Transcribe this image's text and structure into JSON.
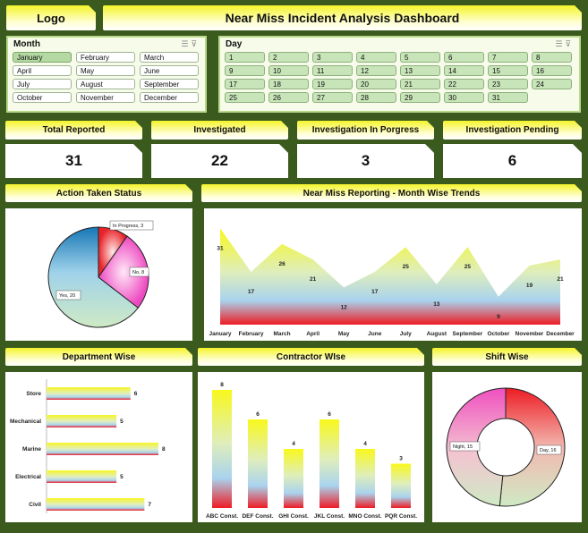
{
  "header": {
    "logo": "Logo",
    "title": "Near Miss Incident Analysis Dashboard"
  },
  "month_slicer": {
    "title": "Month",
    "items": [
      "January",
      "February",
      "March",
      "April",
      "May",
      "June",
      "July",
      "August",
      "September",
      "October",
      "November",
      "December"
    ],
    "selected": "January"
  },
  "day_slicer": {
    "title": "Day",
    "items": [
      "1",
      "2",
      "3",
      "4",
      "5",
      "6",
      "7",
      "8",
      "9",
      "10",
      "11",
      "12",
      "13",
      "14",
      "15",
      "16",
      "17",
      "18",
      "19",
      "20",
      "21",
      "22",
      "23",
      "24",
      "25",
      "26",
      "27",
      "28",
      "29",
      "30",
      "31"
    ]
  },
  "kpis": [
    {
      "label": "Total Reported",
      "value": "31"
    },
    {
      "label": "Investigated",
      "value": "22"
    },
    {
      "label": "Investigation In Porgress",
      "value": "3"
    },
    {
      "label": "Investigation Pending",
      "value": "6"
    }
  ],
  "panels": {
    "action_status": "Action Taken Status",
    "monthly_trend": "Near Miss Reporting - Month Wise Trends",
    "department": "Department Wise",
    "contractor": "Contractor WIse",
    "shift": "Shift Wise"
  },
  "colors": {
    "background": "#3a5a1e",
    "header_yellow": "#f4f42a",
    "red": "#e8242a",
    "green_light": "#c6e6b8",
    "pink": "#f050c0",
    "blue": "#1b7ab8"
  },
  "chart_data": [
    {
      "type": "pie",
      "labels": [
        "In Progress",
        "No",
        "Yes"
      ],
      "values": [
        3,
        8,
        20
      ],
      "data_labels": [
        "In Progress, 3",
        "No, 8",
        "Yes, 20"
      ]
    },
    {
      "type": "area",
      "categories": [
        "January",
        "February",
        "March",
        "April",
        "May",
        "June",
        "July",
        "August",
        "September",
        "October",
        "November",
        "December"
      ],
      "values": [
        31,
        17,
        26,
        21,
        12,
        17,
        25,
        13,
        25,
        9,
        19,
        21
      ]
    },
    {
      "type": "bar",
      "orientation": "horizontal",
      "categories": [
        "Store",
        "Mechanical",
        "Marine",
        "Electrical",
        "Civil"
      ],
      "values": [
        6,
        5,
        8,
        5,
        7
      ]
    },
    {
      "type": "bar",
      "categories": [
        "ABC Const.",
        "DEF Const.",
        "GHI Const.",
        "JKL Const.",
        "MNO Const.",
        "PQR Const."
      ],
      "values": [
        8,
        6,
        4,
        6,
        4,
        3
      ]
    },
    {
      "type": "pie",
      "donut": true,
      "labels": [
        "Day",
        "Night"
      ],
      "values": [
        16,
        15
      ],
      "data_labels": [
        "Day, 16",
        "Night, 15"
      ]
    }
  ]
}
